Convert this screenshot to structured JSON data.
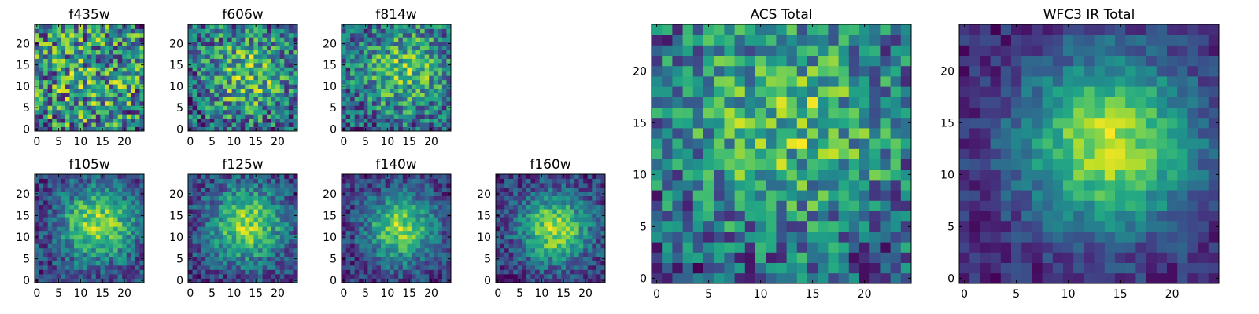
{
  "chart_data": [
    {
      "type": "heatmap",
      "title": "f435w",
      "xlabel": "",
      "ylabel": "",
      "xlim": [
        -0.5,
        24.5
      ],
      "ylim": [
        -0.5,
        24.5
      ],
      "xticks": [
        0,
        5,
        10,
        15,
        20
      ],
      "yticks": [
        0,
        5,
        10,
        15,
        20
      ],
      "grid_shape": [
        25,
        25
      ],
      "colormap": "viridis",
      "pattern": {
        "cx": 12,
        "cy": 12,
        "sigma": 12,
        "amp": 0.15,
        "base": 0.55,
        "noise": 0.55,
        "seed": 11
      }
    },
    {
      "type": "heatmap",
      "title": "f606w",
      "xlabel": "",
      "ylabel": "",
      "xlim": [
        -0.5,
        24.5
      ],
      "ylim": [
        -0.5,
        24.5
      ],
      "xticks": [
        0,
        5,
        10,
        15,
        20
      ],
      "yticks": [
        0,
        5,
        10,
        15,
        20
      ],
      "grid_shape": [
        25,
        25
      ],
      "colormap": "viridis",
      "pattern": {
        "cx": 13,
        "cy": 13,
        "sigma": 8,
        "amp": 0.3,
        "base": 0.45,
        "noise": 0.5,
        "seed": 23
      }
    },
    {
      "type": "heatmap",
      "title": "f814w",
      "xlabel": "",
      "ylabel": "",
      "xlim": [
        -0.5,
        24.5
      ],
      "ylim": [
        -0.5,
        24.5
      ],
      "xticks": [
        0,
        5,
        10,
        15,
        20
      ],
      "yticks": [
        0,
        5,
        10,
        15,
        20
      ],
      "grid_shape": [
        25,
        25
      ],
      "colormap": "viridis",
      "pattern": {
        "cx": 14,
        "cy": 14,
        "sigma": 8,
        "amp": 0.35,
        "base": 0.42,
        "noise": 0.5,
        "seed": 37
      }
    },
    {
      "type": "heatmap",
      "title": "f105w",
      "xlabel": "",
      "ylabel": "",
      "xlim": [
        -0.5,
        24.5
      ],
      "ylim": [
        -0.5,
        24.5
      ],
      "xticks": [
        0,
        5,
        10,
        15,
        20
      ],
      "yticks": [
        0,
        5,
        10,
        15,
        20
      ],
      "grid_shape": [
        25,
        25
      ],
      "colormap": "viridis",
      "pattern": {
        "cx": 14,
        "cy": 13,
        "sigma": 6,
        "amp": 0.55,
        "base": 0.3,
        "noise": 0.35,
        "seed": 51
      }
    },
    {
      "type": "heatmap",
      "title": "f125w",
      "xlabel": "",
      "ylabel": "",
      "xlim": [
        -0.5,
        24.5
      ],
      "ylim": [
        -0.5,
        24.5
      ],
      "xticks": [
        0,
        5,
        10,
        15,
        20
      ],
      "yticks": [
        0,
        5,
        10,
        15,
        20
      ],
      "grid_shape": [
        25,
        25
      ],
      "colormap": "viridis",
      "pattern": {
        "cx": 13,
        "cy": 13,
        "sigma": 6,
        "amp": 0.55,
        "base": 0.28,
        "noise": 0.35,
        "seed": 67
      }
    },
    {
      "type": "heatmap",
      "title": "f140w",
      "xlabel": "",
      "ylabel": "",
      "xlim": [
        -0.5,
        24.5
      ],
      "ylim": [
        -0.5,
        24.5
      ],
      "xticks": [
        0,
        5,
        10,
        15,
        20
      ],
      "yticks": [
        0,
        5,
        10,
        15,
        20
      ],
      "grid_shape": [
        25,
        25
      ],
      "colormap": "viridis",
      "pattern": {
        "cx": 13,
        "cy": 12,
        "sigma": 5.5,
        "amp": 0.6,
        "base": 0.25,
        "noise": 0.35,
        "seed": 79
      }
    },
    {
      "type": "heatmap",
      "title": "f160w",
      "xlabel": "",
      "ylabel": "",
      "xlim": [
        -0.5,
        24.5
      ],
      "ylim": [
        -0.5,
        24.5
      ],
      "xticks": [
        0,
        5,
        10,
        15,
        20
      ],
      "yticks": [
        0,
        5,
        10,
        15,
        20
      ],
      "grid_shape": [
        25,
        25
      ],
      "colormap": "viridis",
      "pattern": {
        "cx": 13,
        "cy": 12,
        "sigma": 5.5,
        "amp": 0.62,
        "base": 0.22,
        "noise": 0.35,
        "seed": 97
      }
    },
    {
      "type": "heatmap",
      "title": "ACS Total",
      "xlabel": "",
      "ylabel": "",
      "xlim": [
        -0.5,
        24.5
      ],
      "ylim": [
        -0.5,
        24.5
      ],
      "xticks": [
        0,
        5,
        10,
        15,
        20
      ],
      "yticks": [
        0,
        5,
        10,
        15,
        20
      ],
      "grid_shape": [
        25,
        25
      ],
      "colormap": "viridis",
      "pattern": {
        "cx": 13,
        "cy": 15,
        "sigma": 8,
        "amp": 0.3,
        "base": 0.5,
        "noise": 0.45,
        "seed": 131
      }
    },
    {
      "type": "heatmap",
      "title": "WFC3 IR Total",
      "xlabel": "",
      "ylabel": "",
      "xlim": [
        -0.5,
        24.5
      ],
      "ylim": [
        -0.5,
        24.5
      ],
      "xticks": [
        0,
        5,
        10,
        15,
        20
      ],
      "yticks": [
        0,
        5,
        10,
        15,
        20
      ],
      "grid_shape": [
        25,
        25
      ],
      "colormap": "viridis",
      "pattern": {
        "cx": 14,
        "cy": 13,
        "sigma": 6,
        "amp": 0.6,
        "base": 0.28,
        "noise": 0.2,
        "seed": 173
      }
    }
  ]
}
